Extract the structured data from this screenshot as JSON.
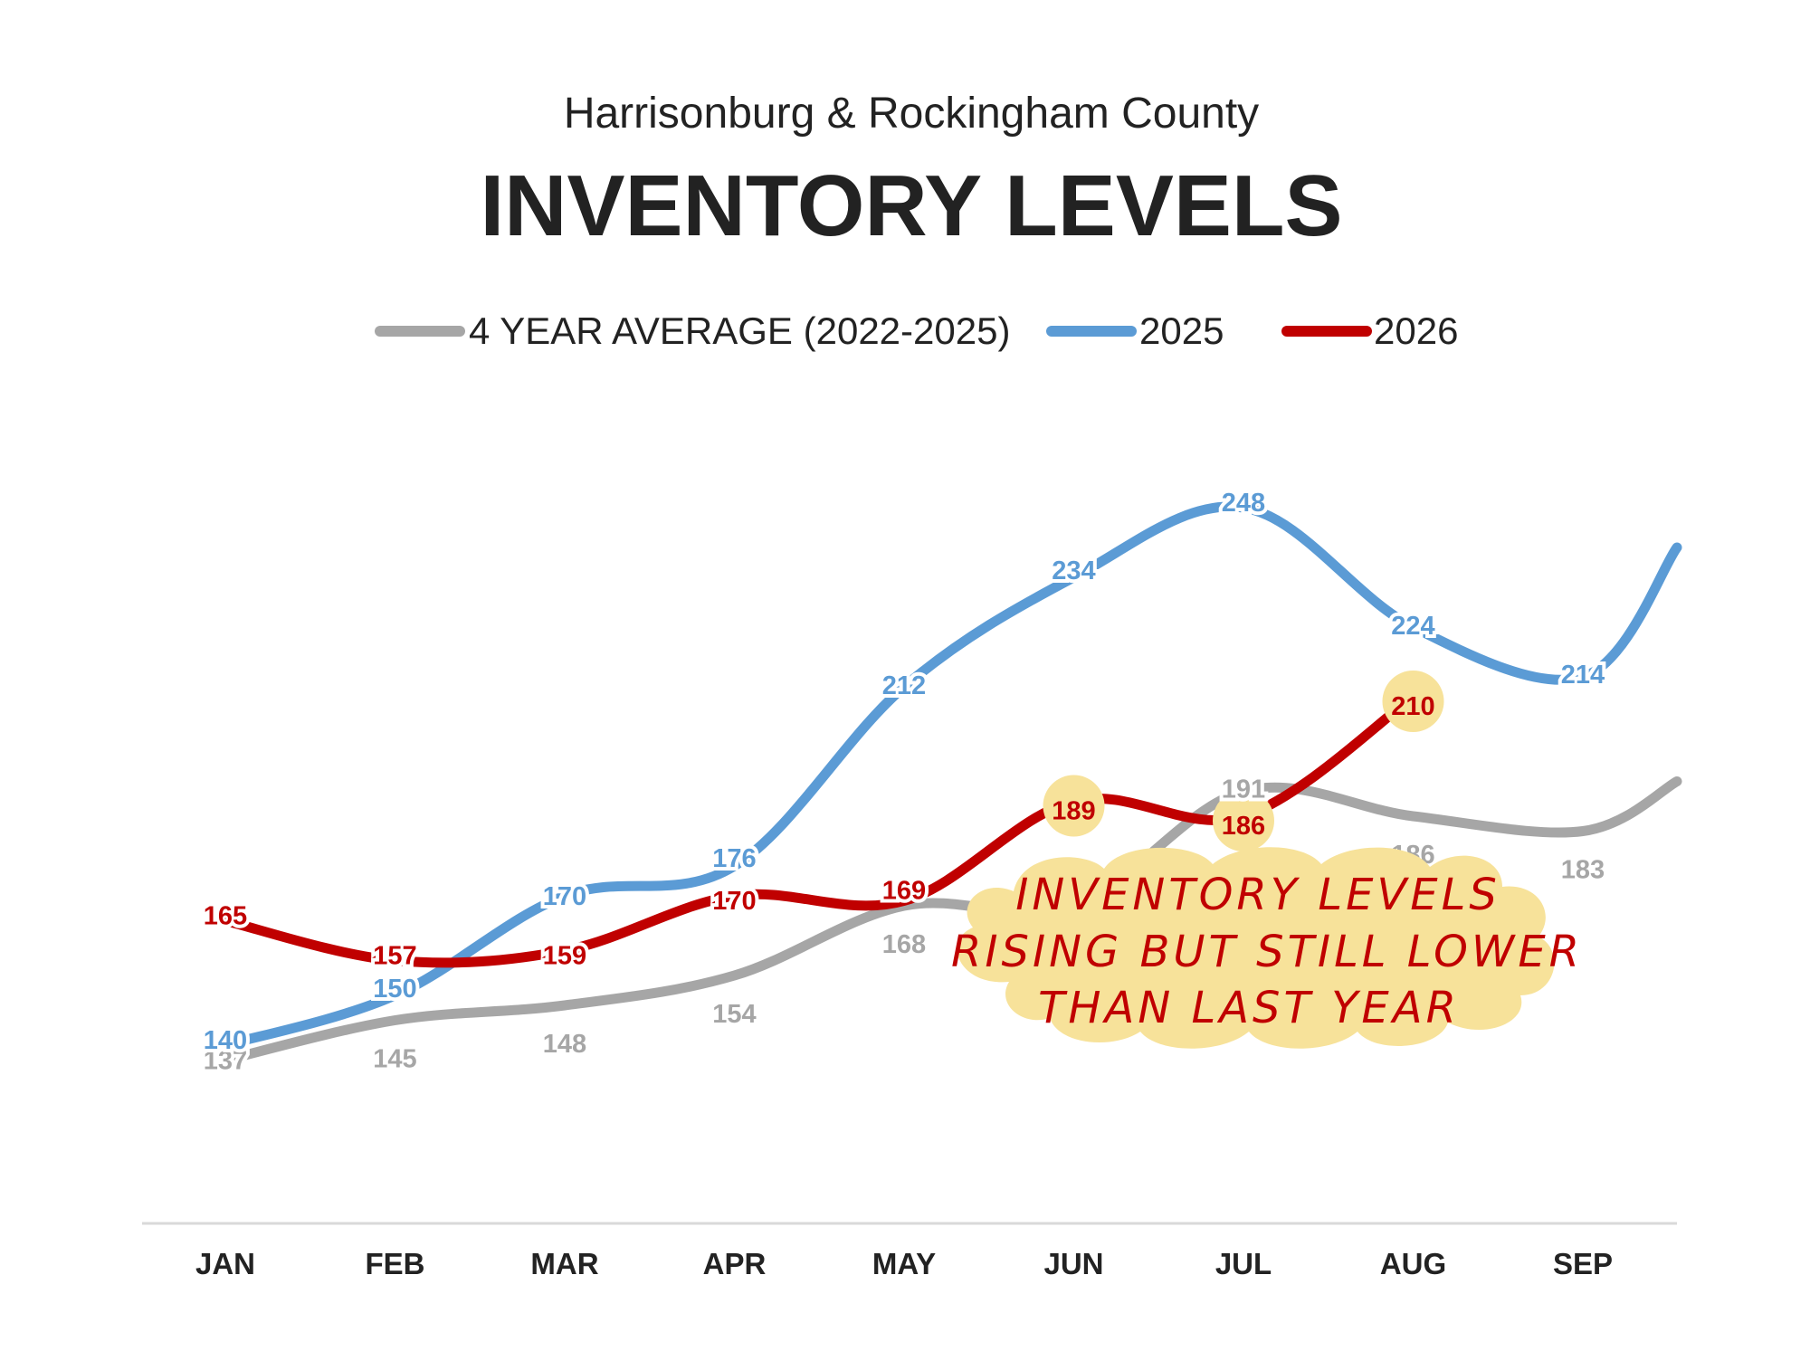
{
  "chart_data": {
    "type": "line",
    "subtitle": "Harrisonburg & Rockingham County",
    "title": "INVENTORY LEVELS",
    "categories": [
      "JAN",
      "FEB",
      "MAR",
      "APR",
      "MAY",
      "JUN",
      "JUL",
      "AUG",
      "SEP"
    ],
    "series": [
      {
        "name": "4 YEAR AVERAGE (2022-2025)",
        "color": "#a6a6a6",
        "values": [
          137,
          145,
          148,
          154,
          168,
          168,
          191,
          186,
          183
        ],
        "tail": 193
      },
      {
        "name": "2025",
        "color": "#5b9bd5",
        "values": [
          140,
          150,
          170,
          176,
          212,
          234,
          248,
          224,
          214
        ],
        "tail": 240
      },
      {
        "name": "2026",
        "color": "#c00000",
        "values": [
          165,
          157,
          159,
          170,
          169,
          189,
          186,
          210,
          null
        ]
      }
    ],
    "highlighted_points": [
      {
        "series": "2026",
        "category": "JUN",
        "value": 189
      },
      {
        "series": "2026",
        "category": "JUL",
        "value": 186
      },
      {
        "series": "2026",
        "category": "AUG",
        "value": 210
      }
    ],
    "annotation": [
      "INVENTORY LEVELS",
      "RISING BUT STILL LOWER",
      "THAN LAST YEAR"
    ],
    "highlight_color": "#f7e29a",
    "legend_position": "top-center",
    "grid": false
  }
}
